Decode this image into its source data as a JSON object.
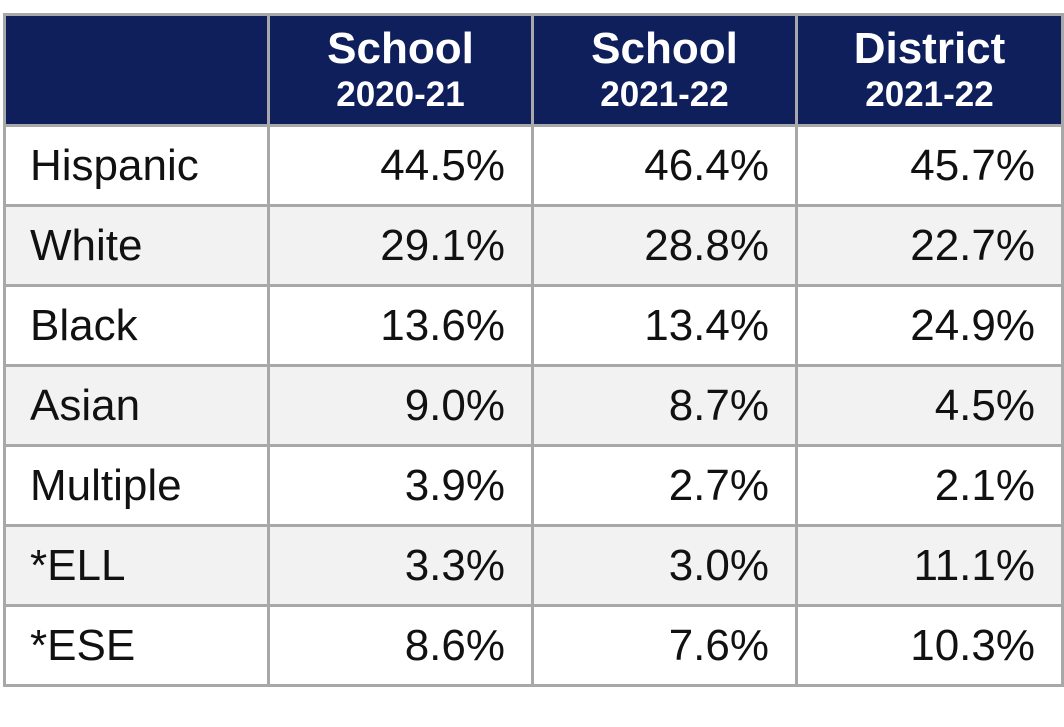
{
  "table": {
    "columns": [
      {
        "title": "School",
        "period": "2020-21"
      },
      {
        "title": "School",
        "period": "2021-22"
      },
      {
        "title": "District",
        "period": "2021-22"
      }
    ],
    "rows": [
      {
        "label": "Hispanic",
        "values": [
          "44.5%",
          "46.4%",
          "45.7%"
        ]
      },
      {
        "label": "White",
        "values": [
          "29.1%",
          "28.8%",
          "22.7%"
        ]
      },
      {
        "label": "Black",
        "values": [
          "13.6%",
          "13.4%",
          "24.9%"
        ]
      },
      {
        "label": "Asian",
        "values": [
          "9.0%",
          "8.7%",
          "4.5%"
        ]
      },
      {
        "label": "Multiple",
        "values": [
          "3.9%",
          "2.7%",
          "2.1%"
        ]
      },
      {
        "label": "*ELL",
        "values": [
          "3.3%",
          "3.0%",
          "11.1%"
        ]
      },
      {
        "label": "*ESE",
        "values": [
          "8.6%",
          "7.6%",
          "10.3%"
        ]
      }
    ]
  }
}
